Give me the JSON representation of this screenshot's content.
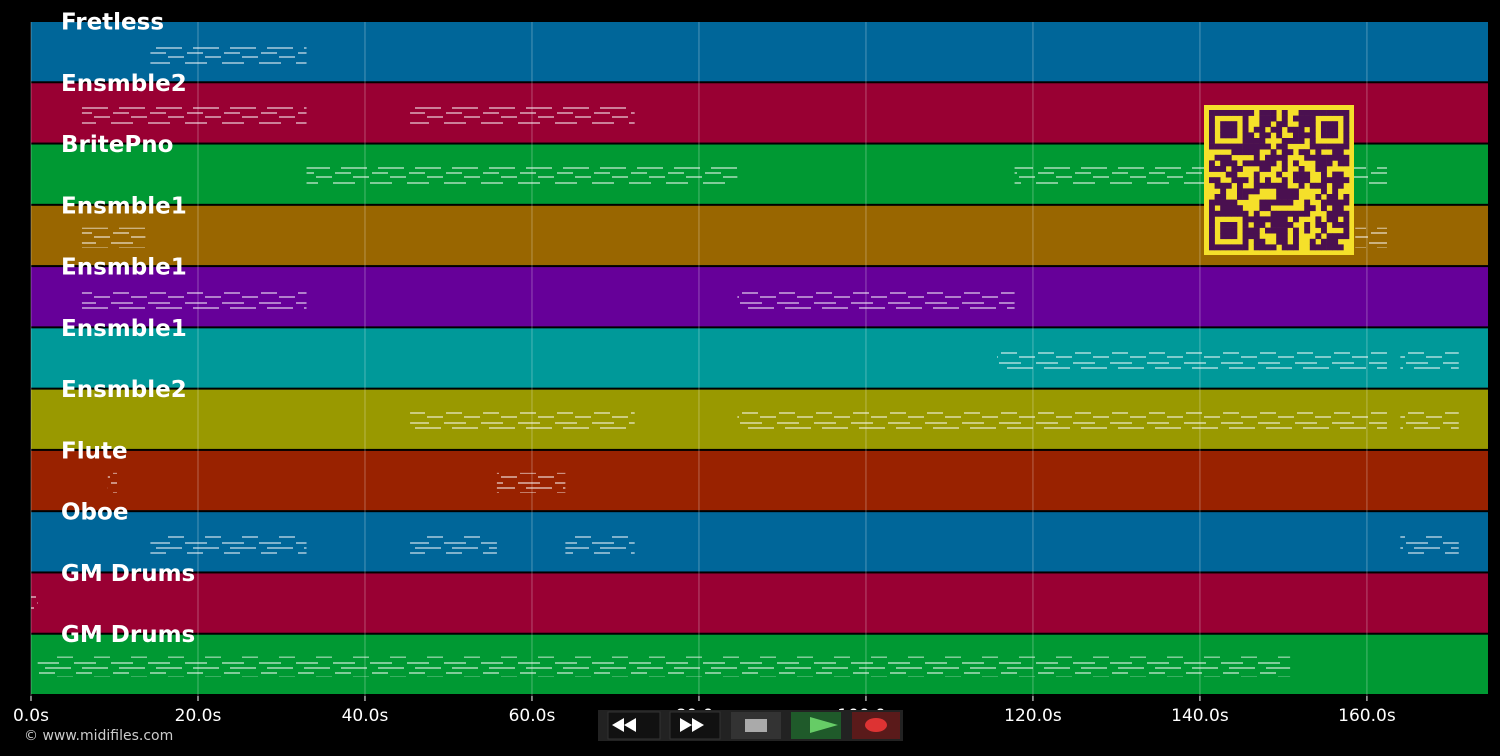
{
  "chart_data": {
    "type": "timeline",
    "xlim": [
      0,
      174.5
    ],
    "xticks": [
      {
        "value": 0,
        "label": "0.0s"
      },
      {
        "value": 20,
        "label": "20.0s"
      },
      {
        "value": 40,
        "label": "40.0s"
      },
      {
        "value": 60,
        "label": "60.0s"
      },
      {
        "value": 80,
        "label": "80.0s"
      },
      {
        "value": 100,
        "label": "100.0s"
      },
      {
        "value": 120,
        "label": "120.0s"
      },
      {
        "value": 140,
        "label": "140.0s"
      },
      {
        "value": 160,
        "label": "160.0s"
      }
    ],
    "grid": true,
    "source": "© www.midifiles.com",
    "tracks": [
      {
        "name": "Fretless",
        "color": "#006699",
        "segments": [
          [
            14.3,
            33
          ]
        ]
      },
      {
        "name": "Ensmble2",
        "color": "#990033",
        "segments": [
          [
            6.1,
            33
          ],
          [
            45.4,
            72.3
          ]
        ]
      },
      {
        "name": "BritePno",
        "color": "#009933",
        "segments": [
          [
            33,
            84.6
          ],
          [
            117.8,
            162.4
          ]
        ]
      },
      {
        "name": "Ensmble1",
        "color": "#996600",
        "segments": [
          [
            6.1,
            13.7
          ],
          [
            158.6,
            162.4
          ]
        ]
      },
      {
        "name": "Ensmble1",
        "color": "#660099",
        "segments": [
          [
            6.1,
            33
          ],
          [
            84.6,
            117.8
          ]
        ]
      },
      {
        "name": "Ensmble1",
        "color": "#009999",
        "segments": [
          [
            115.7,
            162.4
          ],
          [
            164,
            171
          ]
        ]
      },
      {
        "name": "Ensmble2",
        "color": "#999900",
        "segments": [
          [
            45.4,
            72.3
          ],
          [
            84.6,
            162.4
          ],
          [
            164,
            171
          ]
        ]
      },
      {
        "name": "Flute",
        "color": "#992200",
        "segments": [
          [
            9.2,
            10.3
          ],
          [
            55.8,
            64
          ]
        ]
      },
      {
        "name": "Oboe",
        "color": "#006699",
        "segments": [
          [
            14.3,
            33
          ],
          [
            45.4,
            55.8
          ],
          [
            64,
            72.3
          ],
          [
            164,
            171
          ]
        ]
      },
      {
        "name": "GM Drums",
        "color": "#990033",
        "segments": [
          [
            0,
            0.8
          ]
        ]
      },
      {
        "name": "GM Drums",
        "color": "#009933",
        "segments": [
          [
            0.8,
            150.8
          ]
        ]
      }
    ]
  }
}
